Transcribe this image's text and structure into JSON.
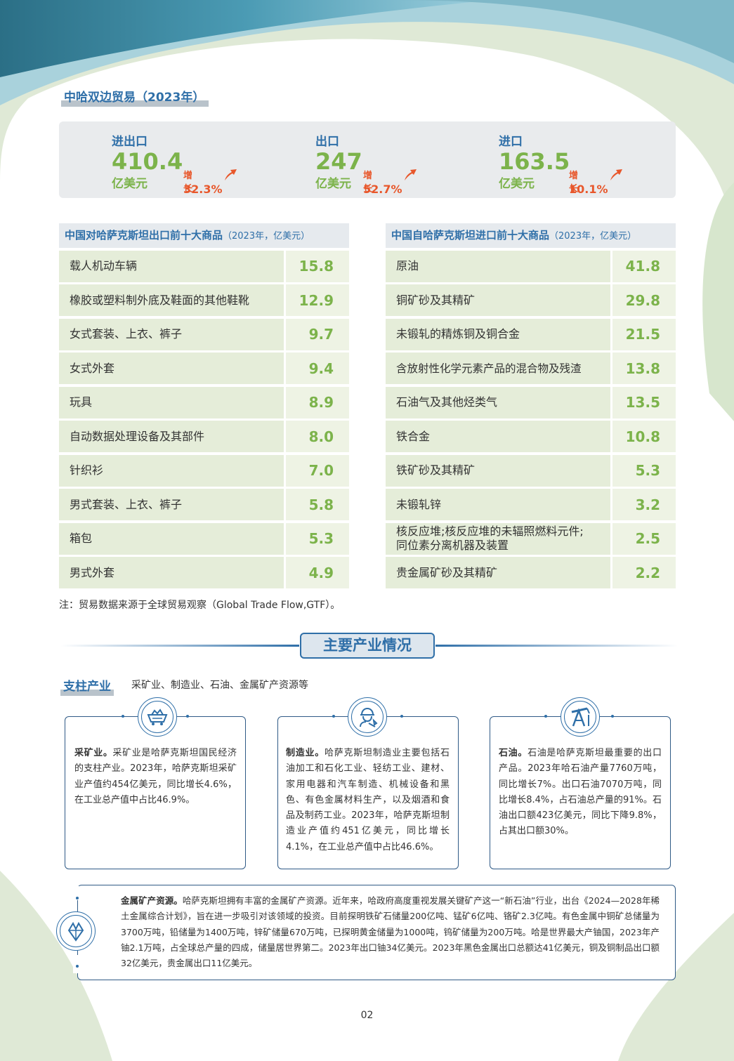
{
  "trade_section": {
    "title": "中哈双边贸易（2023年）"
  },
  "stats": [
    {
      "label": "进出口",
      "value": "410.4",
      "unit": "亿美元",
      "growth_label": "增长",
      "growth_value": "32.3%"
    },
    {
      "label": "出口",
      "value": "247",
      "unit": "亿美元",
      "growth_label": "增长",
      "growth_value": "52.7%"
    },
    {
      "label": "进口",
      "value": "163.5",
      "unit": "亿美元",
      "growth_label": "增长",
      "growth_value": "10.1%"
    }
  ],
  "export_table": {
    "title": "中国对哈萨克斯坦出口前十大商品",
    "subtitle": "（2023年，亿美元）",
    "rows": [
      {
        "name": "载人机动车辆",
        "value": "15.8"
      },
      {
        "name": "橡胶或塑料制外底及鞋面的其他鞋靴",
        "value": "12.9"
      },
      {
        "name": "女式套装、上衣、裤子",
        "value": "9.7"
      },
      {
        "name": "女式外套",
        "value": "9.4"
      },
      {
        "name": "玩具",
        "value": "8.9"
      },
      {
        "name": "自动数据处理设备及其部件",
        "value": "8.0"
      },
      {
        "name": "针织衫",
        "value": "7.0"
      },
      {
        "name": "男式套装、上衣、裤子",
        "value": "5.8"
      },
      {
        "name": "箱包",
        "value": "5.3"
      },
      {
        "name": "男式外套",
        "value": "4.9"
      }
    ]
  },
  "import_table": {
    "title": "中国自哈萨克斯坦进口前十大商品",
    "subtitle": "（2023年，亿美元）",
    "rows": [
      {
        "name": "原油",
        "value": "41.8"
      },
      {
        "name": "铜矿砂及其精矿",
        "value": "29.8"
      },
      {
        "name": "未锻轧的精炼铜及铜合金",
        "value": "21.5"
      },
      {
        "name": "含放射性化学元素产品的混合物及残渣",
        "value": "13.8"
      },
      {
        "name": "石油气及其他烃类气",
        "value": "13.5"
      },
      {
        "name": "铁合金",
        "value": "10.8"
      },
      {
        "name": "铁矿砂及其精矿",
        "value": "5.3"
      },
      {
        "name": "未锻轧锌",
        "value": "3.2"
      },
      {
        "name": "核反应堆;核反应堆的未辐照燃料元件;",
        "name2": "同位素分离机器及装置",
        "value": "2.5"
      },
      {
        "name": "贵金属矿砂及其精矿",
        "value": "2.2"
      }
    ]
  },
  "note": "注：贸易数据来源于全球贸易观察（Global Trade Flow,GTF）。",
  "industry": {
    "heading": "主要产业情况",
    "pillar_title": "支柱产业",
    "pillar_sub": "采矿业、制造业、石油、金属矿产资源等",
    "cards": [
      {
        "lead": "采矿业。",
        "text": "采矿业是哈萨克斯坦国民经济的支柱产业。2023年，哈萨克斯坦采矿业产值约454亿美元，同比增长4.6%，在工业总产值中占比46.9%。",
        "icon": "mining-cart-icon"
      },
      {
        "lead": "制造业。",
        "text": "哈萨克斯坦制造业主要包括石油加工和石化工业、轻纺工业、建材、家用电器和汽车制造、机械设备和黑色、有色金属材料生产，以及烟酒和食品及制药工业。2023年，哈萨克斯坦制造业产值约451亿美元，同比增长4.1%，在工业总产值中占比46.6%。",
        "icon": "worker-wrench-icon"
      },
      {
        "lead": "石油。",
        "text": "石油是哈萨克斯坦最重要的出口产品。2023年哈石油产量7760万吨，同比增长7%。出口石油7070万吨，同比增长8.4%，占石油总产量的91%。石油出口额423亿美元，同比下降9.8%，占其出口额30%。",
        "icon": "oil-pump-icon"
      }
    ],
    "metal": {
      "lead": "金属矿产资源。",
      "text": "哈萨克斯坦拥有丰富的金属矿产资源。近年来，哈政府高度重视发展关键矿产这一“新石油”行业，出台《2024—2028年稀土金属综合计划》，旨在进一步吸引对该领域的投资。目前探明铁矿石储量200亿吨、锰矿6亿吨、铬矿2.3亿吨。有色金属中铜矿总储量为3700万吨，铅储量为1400万吨，锌矿储量670万吨，已探明黄金储量为1000吨，钨矿储量为200万吨。哈是世界最大产铀国，2023年产铀2.1万吨，占全球总产量的四成，储量居世界第二。2023年出口铀34亿美元。2023年黑色金属出口总额达41亿美元，铜及铜制品出口额32亿美元，贵金属出口11亿美元。",
      "icon": "crystal-icon"
    }
  },
  "page_number": "02"
}
